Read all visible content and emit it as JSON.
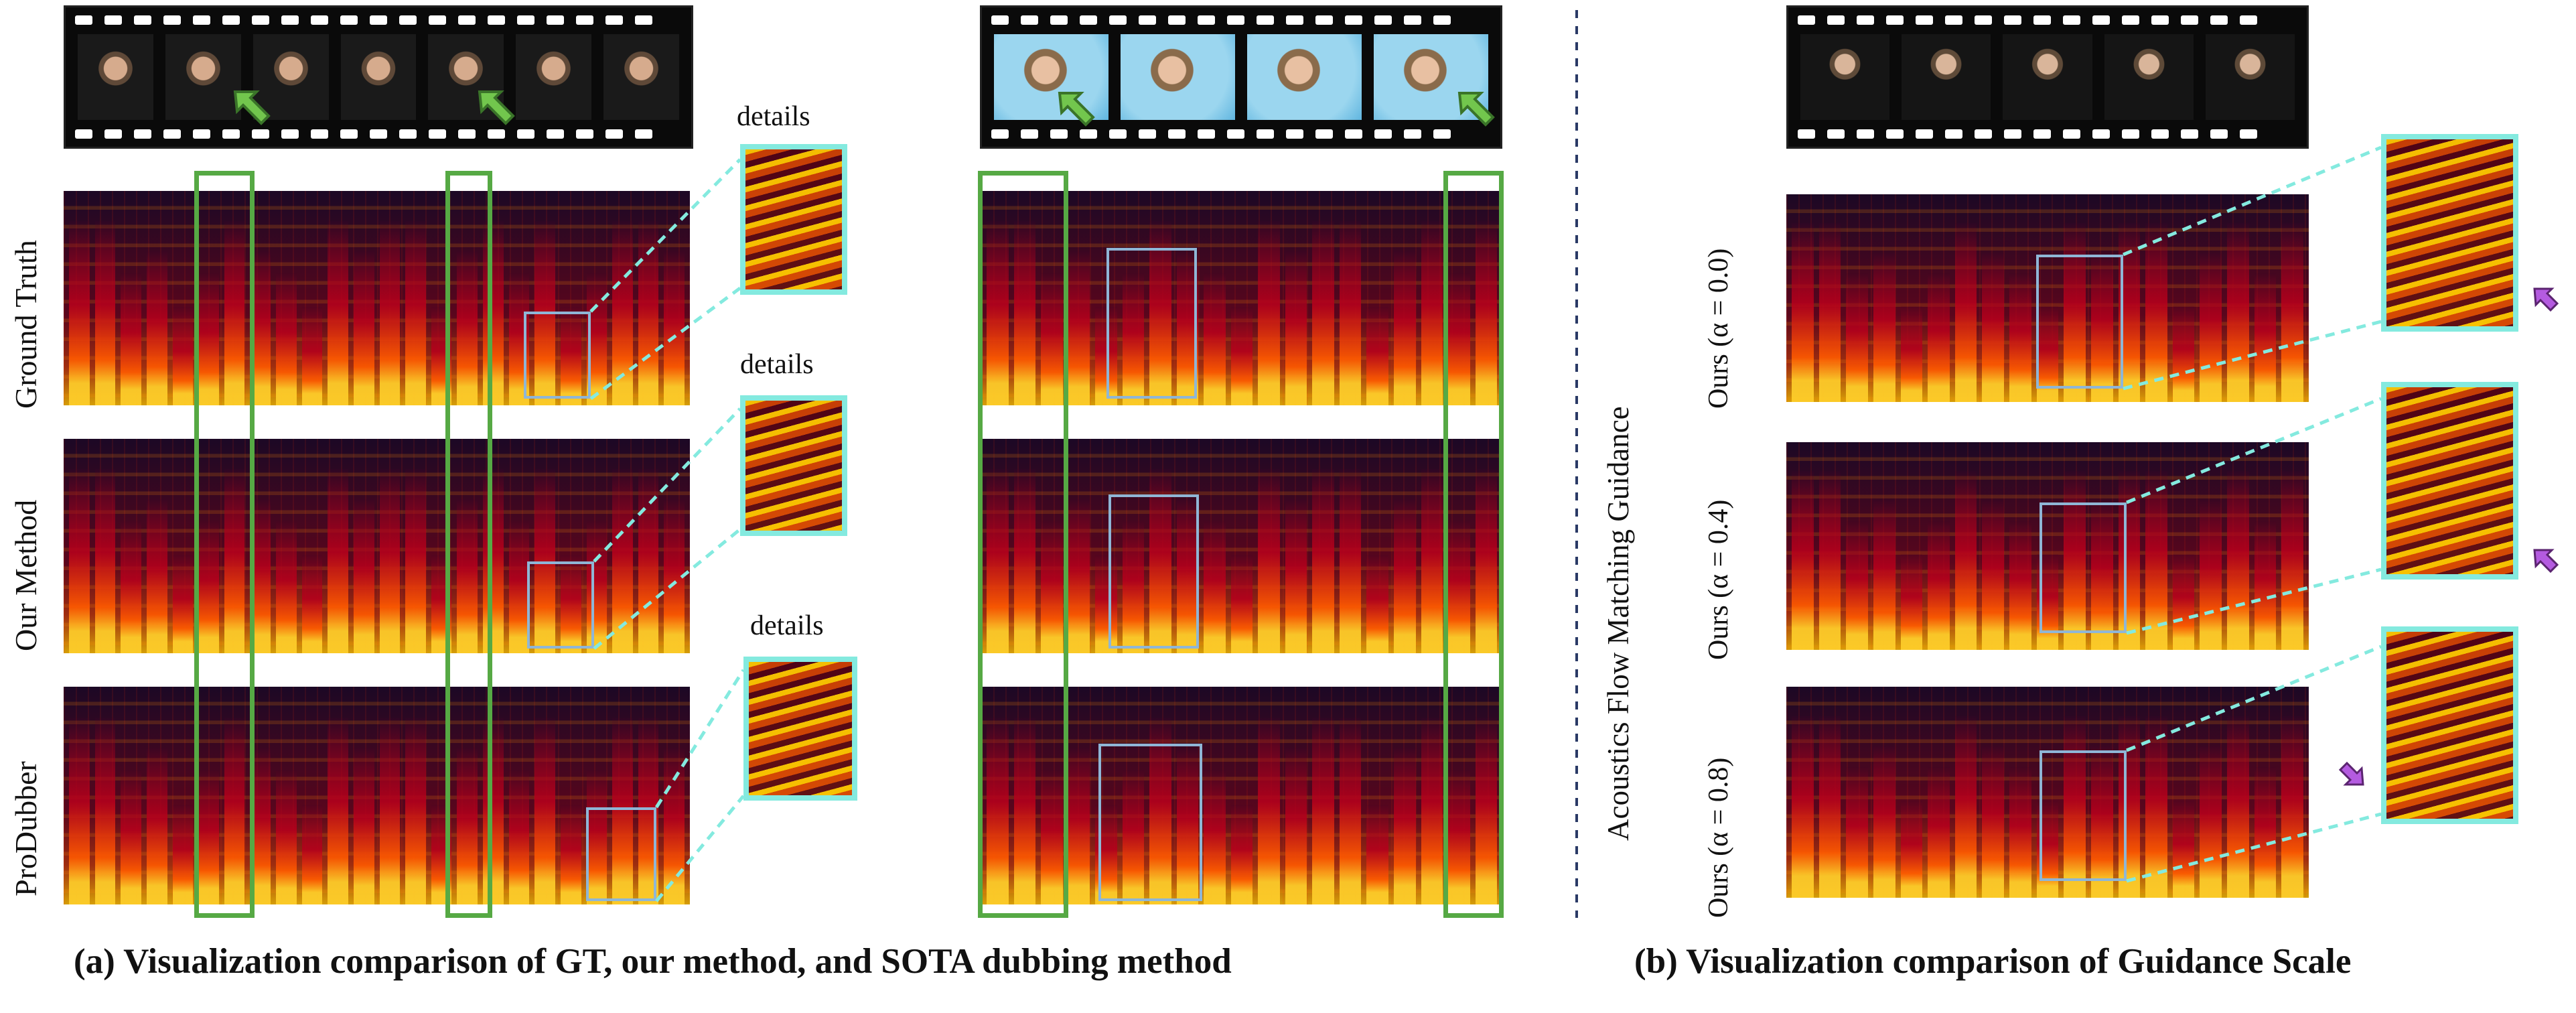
{
  "labels": {
    "details_1": "details",
    "details_2": "details",
    "details_3": "details",
    "row_ground_truth": "Ground Truth",
    "row_our_method": "Our Method",
    "row_produbber": "ProDubber",
    "guidance_axis": "Acoustics Flow Matching Guidance",
    "ours_alpha_00": "Ours (α = 0.0)",
    "ours_alpha_04": "Ours (α = 0.4)",
    "ours_alpha_08": "Ours (α = 0.8)"
  },
  "captions": {
    "left": "(a) Visualization comparison of GT, our method, and SOTA dubbing method",
    "right": "(b) Visualization comparison of Guidance Scale"
  },
  "colors": {
    "green": "#56a944",
    "cyan": "#84eadf",
    "blue_box": "#8fb6d6",
    "purple": "#b45be0",
    "dashed_divider": "#2a3a66"
  }
}
